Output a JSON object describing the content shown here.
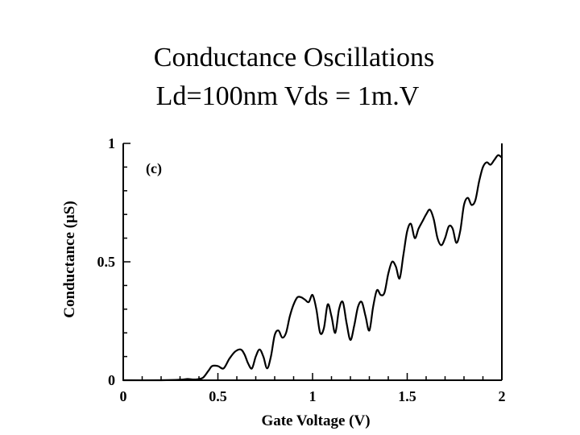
{
  "slide": {
    "title_line_1": "Conductance Oscillations",
    "title_line_2": "Ld=100nm Vds = 1m.V"
  },
  "chart_data": {
    "type": "line",
    "panel_label": "(c)",
    "xlabel": "Gate Voltage  (V)",
    "ylabel": "Conductance  (μS)",
    "xlim": [
      0,
      2
    ],
    "ylim": [
      0,
      1
    ],
    "x_ticks": [
      0,
      0.5,
      1,
      1.5,
      2
    ],
    "x_tick_labels": [
      "0",
      "0.5",
      "1",
      "1.5",
      "2"
    ],
    "y_ticks": [
      0,
      0.5,
      1
    ],
    "y_tick_labels": [
      "0",
      "0.5",
      "1"
    ],
    "grid": false,
    "line_color": "#000000",
    "series": [
      {
        "name": "Conductance",
        "x": [
          0,
          0.2,
          0.3,
          0.34,
          0.38,
          0.42,
          0.45,
          0.47,
          0.5,
          0.53,
          0.56,
          0.59,
          0.62,
          0.64,
          0.66,
          0.68,
          0.7,
          0.72,
          0.74,
          0.76,
          0.78,
          0.8,
          0.82,
          0.84,
          0.86,
          0.88,
          0.9,
          0.92,
          0.94,
          0.96,
          0.98,
          1.0,
          1.02,
          1.04,
          1.06,
          1.08,
          1.1,
          1.12,
          1.14,
          1.16,
          1.18,
          1.2,
          1.22,
          1.24,
          1.26,
          1.28,
          1.3,
          1.32,
          1.34,
          1.36,
          1.38,
          1.4,
          1.42,
          1.44,
          1.46,
          1.48,
          1.5,
          1.52,
          1.54,
          1.56,
          1.58,
          1.6,
          1.62,
          1.64,
          1.66,
          1.68,
          1.7,
          1.72,
          1.74,
          1.76,
          1.78,
          1.8,
          1.82,
          1.84,
          1.86,
          1.88,
          1.9,
          1.92,
          1.94,
          1.96,
          1.98,
          2.0
        ],
        "y": [
          0,
          0,
          0.002,
          0.005,
          0.003,
          0.01,
          0.04,
          0.06,
          0.06,
          0.05,
          0.09,
          0.12,
          0.13,
          0.11,
          0.07,
          0.05,
          0.1,
          0.13,
          0.1,
          0.05,
          0.1,
          0.19,
          0.21,
          0.18,
          0.2,
          0.27,
          0.32,
          0.35,
          0.35,
          0.34,
          0.33,
          0.36,
          0.3,
          0.2,
          0.22,
          0.32,
          0.27,
          0.2,
          0.3,
          0.33,
          0.24,
          0.17,
          0.23,
          0.31,
          0.33,
          0.27,
          0.21,
          0.31,
          0.38,
          0.36,
          0.37,
          0.45,
          0.5,
          0.48,
          0.43,
          0.53,
          0.63,
          0.66,
          0.6,
          0.64,
          0.67,
          0.7,
          0.72,
          0.68,
          0.6,
          0.57,
          0.6,
          0.65,
          0.64,
          0.58,
          0.63,
          0.74,
          0.77,
          0.74,
          0.76,
          0.84,
          0.9,
          0.92,
          0.91,
          0.93,
          0.95,
          0.94
        ]
      }
    ]
  }
}
